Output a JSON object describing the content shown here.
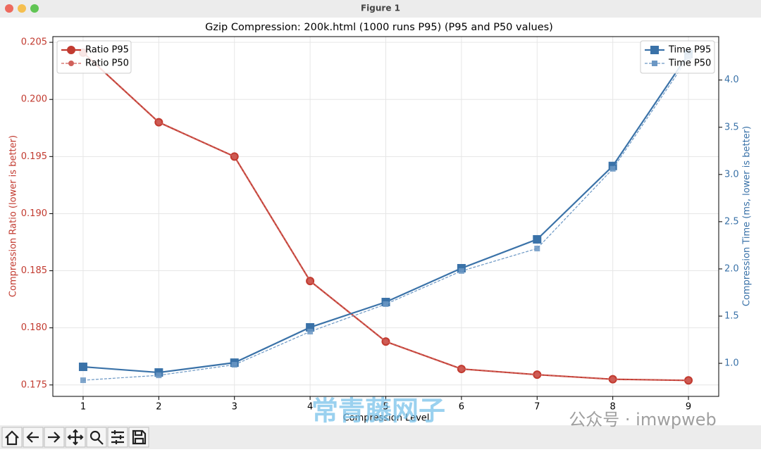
{
  "window_title": "Figure 1",
  "watermark": {
    "left": "常青藤网子",
    "right": "公众号 · imwpweb"
  },
  "chart_data": {
    "type": "line",
    "title": "Gzip Compression: 200k.html (1000 runs P95) (P95 and P50 values)",
    "xlabel": "Compression Level",
    "ylabel": "Compression Ratio (lower is better)",
    "y2label": "Compression Time (ms, lower is better)",
    "ylabel_color": "#c23b30",
    "y2label_color": "#3a72a8",
    "x": [
      1,
      2,
      3,
      4,
      5,
      6,
      7,
      8,
      9
    ],
    "xlim": [
      0.6,
      9.4
    ],
    "xticks": [
      1,
      2,
      3,
      4,
      5,
      6,
      7,
      8,
      9
    ],
    "ylim": [
      0.174,
      0.2055
    ],
    "yticks": [
      0.175,
      {
        "value": 0.18,
        "label": "0.180"
      },
      0.185,
      {
        "value": 0.19,
        "label": "0.190"
      },
      0.195,
      {
        "value": 0.2,
        "label": "0.200"
      },
      0.205
    ],
    "y2lim": [
      0.65,
      4.46
    ],
    "y2ticks": [
      {
        "value": 1,
        "label": "1.0"
      },
      1.5,
      {
        "value": 2,
        "label": "2.0"
      },
      2.5,
      {
        "value": 3,
        "label": "3.0"
      },
      3.5,
      {
        "value": 4,
        "label": "4.0"
      }
    ],
    "grid": true,
    "legend": "upper left",
    "legend2": "upper right",
    "series": [
      {
        "name": "Ratio P95",
        "color": "#c23b30",
        "marker": "o",
        "linestyle": "solid",
        "axis": "y",
        "values": [
          0.2041,
          0.198,
          0.195,
          0.1841,
          0.1788,
          0.1764,
          0.1759,
          0.1755,
          0.1754
        ]
      },
      {
        "name": "Ratio P50",
        "color": "#d0605a",
        "marker": "o",
        "linestyle": "dashed",
        "axis": "y",
        "values": [
          0.2041,
          0.198,
          0.195,
          0.1841,
          0.1788,
          0.1764,
          0.1759,
          0.1755,
          0.1754
        ]
      },
      {
        "name": "Time P95",
        "color": "#3a72a8",
        "marker": "s",
        "linestyle": "solid",
        "axis": "y2",
        "values": [
          0.963,
          0.903,
          1.007,
          1.381,
          1.649,
          2.007,
          2.313,
          3.09,
          4.276
        ]
      },
      {
        "name": "Time P50",
        "color": "#6b97c4",
        "marker": "s",
        "linestyle": "dashed",
        "axis": "y2",
        "values": [
          0.821,
          0.873,
          0.985,
          1.336,
          1.627,
          1.978,
          2.216,
          3.06,
          4.239
        ]
      }
    ]
  }
}
